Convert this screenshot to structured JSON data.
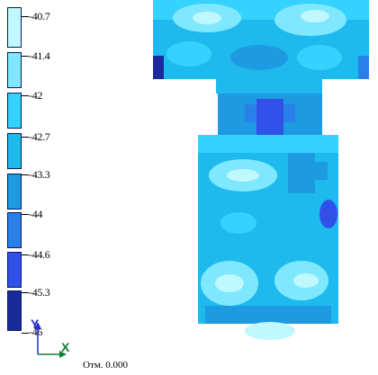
{
  "legend": {
    "ticks": [
      "-40.7",
      "-41.4",
      "-42",
      "-42.7",
      "-43.3",
      "-44",
      "-44.6",
      "-45.3",
      "-46"
    ],
    "colors": [
      "#bff8ff",
      "#7fe8ff",
      "#35d2ff",
      "#1ebaee",
      "#1e9ae0",
      "#2a80e8",
      "#3050e8",
      "#1a2a9a"
    ]
  },
  "axes": {
    "y_label": "Y",
    "x_label": "X"
  },
  "elevation": "Отм. 0.000"
}
